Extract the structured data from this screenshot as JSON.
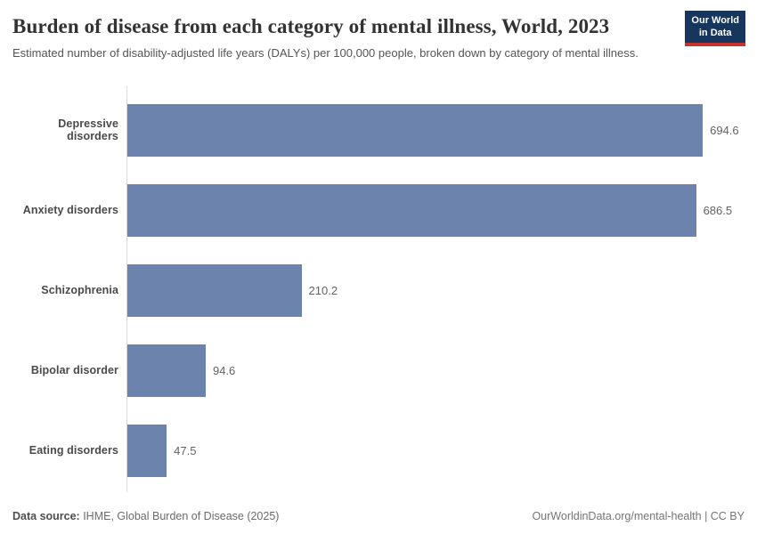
{
  "header": {
    "title": "Burden of disease from each category of mental illness, World, 2023",
    "subtitle": "Estimated number of disability-adjusted life years (DALYs) per 100,000 people, broken down by category of mental illness.",
    "logo": {
      "line1": "Our World",
      "line2": "in Data"
    }
  },
  "chart_data": {
    "type": "bar",
    "orientation": "horizontal",
    "title": "Burden of disease from each category of mental illness, World, 2023",
    "categories": [
      "Depressive disorders",
      "Anxiety disorders",
      "Schizophrenia",
      "Bipolar disorder",
      "Eating disorders"
    ],
    "values": [
      694.6,
      686.5,
      210.2,
      94.6,
      47.5
    ],
    "value_labels": [
      "694.6",
      "686.5",
      "210.2",
      "94.6",
      "47.5"
    ],
    "xlabel": "",
    "ylabel": "",
    "xlim": [
      0,
      745
    ],
    "grid": false,
    "legend": false,
    "bar_color": "#6c84ad",
    "axis_color": "#d9d9d9"
  },
  "footer": {
    "source_label": "Data source:",
    "source_text": " IHME, Global Burden of Disease (2025)",
    "credit": "OurWorldinData.org/mental-health | CC BY"
  }
}
